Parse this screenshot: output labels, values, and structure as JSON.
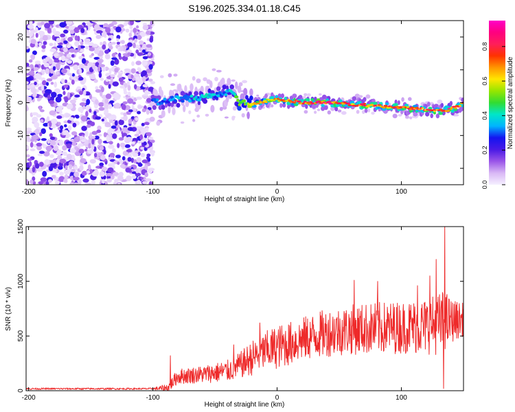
{
  "figure_title": "S196.2025.334.01.18.C45",
  "colors": {
    "frame": "#000000",
    "snr_line": "#ee2a2a",
    "colormap": [
      "#f5f0ff",
      "#d9b8f5",
      "#9a55e8",
      "#4a1ae6",
      "#1414f0",
      "#00b4ff",
      "#00e6c8",
      "#32dc32",
      "#96e600",
      "#ffe600",
      "#ff9600",
      "#ff3200",
      "#ff1e5a",
      "#ff0080",
      "#ff00c8"
    ]
  },
  "chart_data": [
    {
      "type": "heatmap",
      "title": "",
      "xlabel": "Height of straight line (km)",
      "ylabel": "Frequency (Hz)",
      "xlim": [
        -202,
        150
      ],
      "ylim": [
        -25,
        25
      ],
      "xticks": [
        -200,
        -100,
        0,
        100
      ],
      "xtick_labels": [
        "-200",
        "-100",
        "0",
        "100"
      ],
      "yticks": [
        -20,
        -10,
        0,
        10,
        20
      ],
      "ytick_labels": [
        "-20",
        "-10",
        "0",
        "10",
        "20"
      ],
      "colorbar": {
        "label": "Normalized spectral amplitude",
        "range": [
          0,
          0.95
        ],
        "ticks": [
          0,
          0.2,
          0.4,
          0.6,
          0.8
        ],
        "tick_labels": [
          "0.0",
          "0.2",
          "0.4",
          "0.6",
          "0.8"
        ]
      },
      "ridge": {
        "x": [
          -100,
          -80,
          -60,
          -45,
          -38,
          -30,
          -20,
          -10,
          0,
          20,
          40,
          60,
          80,
          100,
          120,
          130,
          140,
          150
        ],
        "frequency": [
          0,
          1,
          1.5,
          2.5,
          4,
          0,
          -0.5,
          0.5,
          1,
          0,
          0,
          -0.5,
          -1,
          -1.5,
          -2,
          -2.5,
          -2,
          0
        ],
        "amplitude": [
          0.3,
          0.35,
          0.4,
          0.35,
          0.4,
          0.5,
          0.6,
          0.65,
          0.7,
          0.8,
          0.85,
          0.8,
          0.75,
          0.75,
          0.8,
          0.8,
          0.85,
          0.75
        ]
      },
      "background_noise": {
        "x_range": [
          -202,
          -100
        ],
        "frequency_range": [
          -25,
          25
        ],
        "amplitude_range": [
          0.02,
          0.25
        ]
      }
    },
    {
      "type": "line",
      "title": "",
      "xlabel": "Height of straight line (km)",
      "ylabel": "SNR (10 * v/v)",
      "xlim": [
        -202,
        150
      ],
      "ylim": [
        0,
        1500
      ],
      "xticks": [
        -200,
        -100,
        0,
        100
      ],
      "xtick_labels": [
        "-200",
        "-100",
        "0",
        "100"
      ],
      "yticks": [
        0,
        500,
        1000,
        1500
      ],
      "ytick_labels": [
        "0",
        "500",
        "1000",
        "1500"
      ],
      "series": [
        {
          "name": "SNR",
          "envelope_x": [
            -202,
            -100,
            -88,
            -80,
            -60,
            -40,
            -30,
            -20,
            -10,
            0,
            10,
            20,
            40,
            60,
            80,
            100,
            120,
            130,
            133,
            136,
            140,
            150
          ],
          "envelope_mean": [
            18,
            18,
            25,
            130,
            150,
            180,
            230,
            300,
            360,
            400,
            430,
            470,
            530,
            560,
            570,
            580,
            590,
            610,
            620,
            630,
            640,
            650
          ],
          "envelope_amplitude": [
            8,
            8,
            40,
            70,
            80,
            100,
            120,
            160,
            180,
            200,
            200,
            200,
            220,
            230,
            240,
            240,
            260,
            280,
            300,
            280,
            200,
            150
          ],
          "peaks": [
            {
              "x": -86,
              "y": 320
            },
            {
              "x": -35,
              "y": 420
            },
            {
              "x": -14,
              "y": 620
            },
            {
              "x": 62,
              "y": 1010
            },
            {
              "x": 81,
              "y": 1000
            },
            {
              "x": 113,
              "y": 960
            },
            {
              "x": 123,
              "y": 1050
            },
            {
              "x": 128,
              "y": 1200
            },
            {
              "x": 135,
              "y": 1500
            },
            {
              "x": 134,
              "y": 20
            }
          ]
        }
      ]
    }
  ]
}
